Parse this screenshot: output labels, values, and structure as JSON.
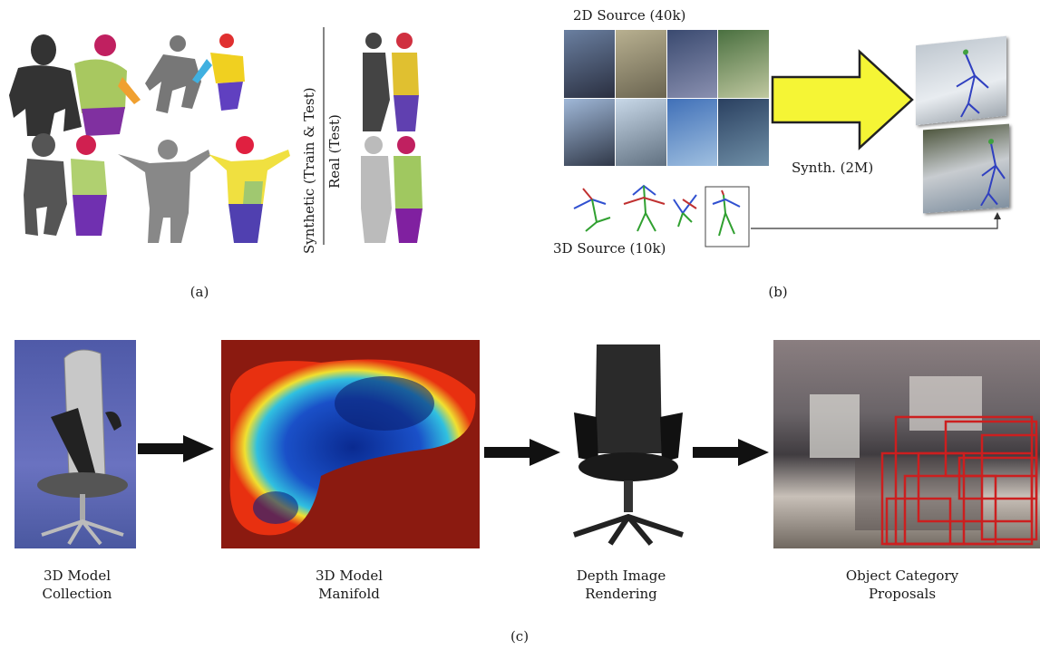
{
  "panel_a": {
    "side_label_synthetic": "Synthetic (Train & Test)",
    "side_label_real": "Real (Test)",
    "caption": "(a)"
  },
  "panel_b": {
    "source_2d_label": "2D Source (40k)",
    "source_3d_label": "3D Source (10k)",
    "synth_label": "Synth. (2M)",
    "caption": "(b)"
  },
  "panel_c": {
    "stages": [
      {
        "line1": "3D Model",
        "line2": "Collection"
      },
      {
        "line1": "3D Model",
        "line2": "Manifold"
      },
      {
        "line1": "Depth Image",
        "line2": "Rendering"
      },
      {
        "line1": "Object Category",
        "line2": "Proposals"
      }
    ],
    "caption": "(c)"
  },
  "colors": {
    "arrow_yellow": "#f5f535",
    "proposal_red": "#cc1f1f",
    "chair_bg_blue": "#5a66b8",
    "manifold_red": "#8b1a10"
  }
}
